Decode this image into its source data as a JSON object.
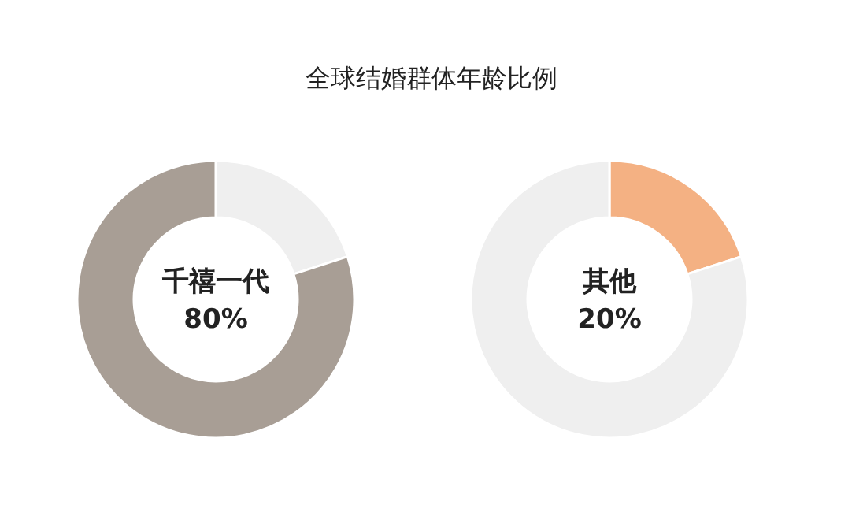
{
  "chart_data": [
    {
      "type": "donut",
      "title": "全球结婚群体年龄比例",
      "categories": [
        null,
        "千禧一代"
      ],
      "values": [
        20,
        80
      ],
      "colors": [
        "#efefef",
        "#a89e95"
      ],
      "value_labels": [
        null,
        "80%"
      ]
    },
    {
      "type": "donut",
      "categories": [
        "其他",
        null
      ],
      "values": [
        20,
        80
      ],
      "colors": [
        "#f4b183",
        "#efefef"
      ],
      "value_labels": [
        "20%",
        null
      ]
    }
  ]
}
